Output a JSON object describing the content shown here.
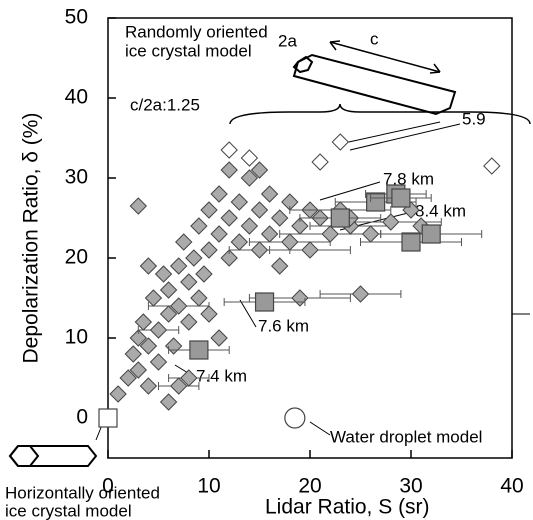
{
  "chart_data": {
    "type": "scatter",
    "x_label": "Lidar Ratio, S (sr)",
    "y_label": "Depolarization Ratio, δ (%)",
    "xlim": [
      0,
      40
    ],
    "ylim": [
      -5,
      50
    ],
    "xticks": [
      0,
      10,
      20,
      30,
      40
    ],
    "yticks": [
      0,
      10,
      20,
      30,
      40,
      50
    ],
    "annotations": [
      "Randomly oriented",
      "ice crystal model",
      "2a",
      "c",
      "c/2a:1.25",
      "5.9",
      "7.8 km",
      "8.4 km",
      "7.6 km",
      "7.4 km",
      "Water droplet model",
      "Horizontally oriented",
      "ice crystal model"
    ],
    "series": [
      {
        "marker": "diamond",
        "color": "#aaaaaa",
        "x": [
          1,
          2,
          2.5,
          3,
          3,
          3.5,
          4,
          4,
          4.5,
          5,
          5,
          5.5,
          6,
          6,
          6.5,
          7,
          7,
          7.5,
          8,
          8,
          8.5,
          9,
          9,
          9.5,
          10,
          10,
          11,
          11,
          12,
          12,
          13,
          13,
          14,
          14,
          15,
          15,
          16,
          16,
          17,
          17,
          18,
          18,
          19,
          19,
          20,
          20,
          21,
          22,
          23,
          24,
          25,
          26,
          28,
          30,
          31,
          3,
          4,
          6,
          8,
          12,
          15,
          7,
          11,
          10,
          24
        ],
        "values": [
          3,
          5,
          8,
          10,
          6,
          12,
          4,
          9,
          15,
          7,
          11,
          18,
          13,
          16,
          9,
          19,
          14,
          22,
          17,
          12,
          20,
          24,
          15,
          18,
          21,
          26,
          23,
          28,
          20,
          25,
          27,
          22,
          30,
          24,
          26,
          21,
          28,
          23,
          25,
          19,
          27,
          22,
          24,
          15,
          26,
          21,
          25,
          23,
          26,
          24,
          15.5,
          23,
          24.5,
          26,
          24,
          26.5,
          19,
          2,
          5,
          31,
          31,
          4,
          10,
          13,
          25
        ],
        "xerr": [
          null,
          null,
          null,
          null,
          null,
          null,
          null,
          null,
          null,
          null,
          2,
          null,
          null,
          null,
          null,
          null,
          3,
          null,
          null,
          null,
          null,
          null,
          null,
          null,
          null,
          null,
          null,
          null,
          null,
          null,
          null,
          null,
          null,
          null,
          null,
          3,
          null,
          null,
          null,
          null,
          null,
          4,
          null,
          5,
          null,
          4,
          null,
          5,
          5,
          4,
          4,
          null,
          5,
          null,
          null,
          null,
          null,
          null,
          2,
          null,
          null,
          2,
          null,
          null,
          null
        ]
      },
      {
        "marker": "square",
        "color": "#999999",
        "x": [
          9,
          15.5,
          26.5,
          28.5,
          30,
          32,
          29,
          23
        ],
        "values": [
          8.5,
          14.5,
          27,
          28,
          22,
          23,
          27.5,
          25
        ],
        "xerr": [
          3,
          4,
          4,
          3,
          5,
          5,
          3,
          4
        ]
      },
      {
        "marker": "diamond",
        "color": "#ffffff",
        "x": [
          12,
          14,
          21,
          23,
          38
        ],
        "values": [
          33.5,
          32.5,
          32,
          34.5,
          31.5
        ],
        "xerr": [
          null,
          null,
          null,
          null,
          null
        ]
      },
      {
        "marker": "square",
        "color": "#ffffff",
        "x": [
          0
        ],
        "values": [
          0
        ],
        "xerr": [
          null
        ]
      },
      {
        "marker": "circle",
        "color": "#ffffff",
        "x": [
          18.5
        ],
        "values": [
          0
        ],
        "xerr": [
          null
        ]
      }
    ]
  }
}
